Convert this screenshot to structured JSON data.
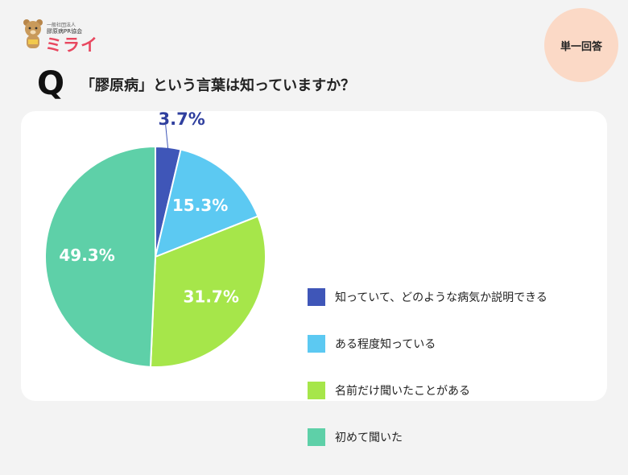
{
  "logo": {
    "org": "一般社団法人",
    "assoc": "膠原病PR協会",
    "name": "ミライ"
  },
  "badge": {
    "label": "単一回答"
  },
  "question": {
    "mark": "Q",
    "text": "「膠原病」という言葉は知っていますか？"
  },
  "colors": {
    "slice1": "#3f56b8",
    "slice2": "#5cc9f2",
    "slice3": "#a6e64a",
    "slice4": "#5ed0a8",
    "label_dark": "#2f3f9e",
    "label_light": "#ffffff"
  },
  "chart_data": {
    "type": "pie",
    "start": "12 o'clock, clockwise",
    "slices": [
      {
        "label": "知っていて、どのような病気か説明できる",
        "value": 3.7,
        "display": "3.7%"
      },
      {
        "label": "ある程度知っている",
        "value": 15.3,
        "display": "15.3%"
      },
      {
        "label": "名前だけ聞いたことがある",
        "value": 31.7,
        "display": "31.7%"
      },
      {
        "label": "初めて聞いた",
        "value": 49.3,
        "display": "49.3%"
      }
    ],
    "legend": "right"
  }
}
